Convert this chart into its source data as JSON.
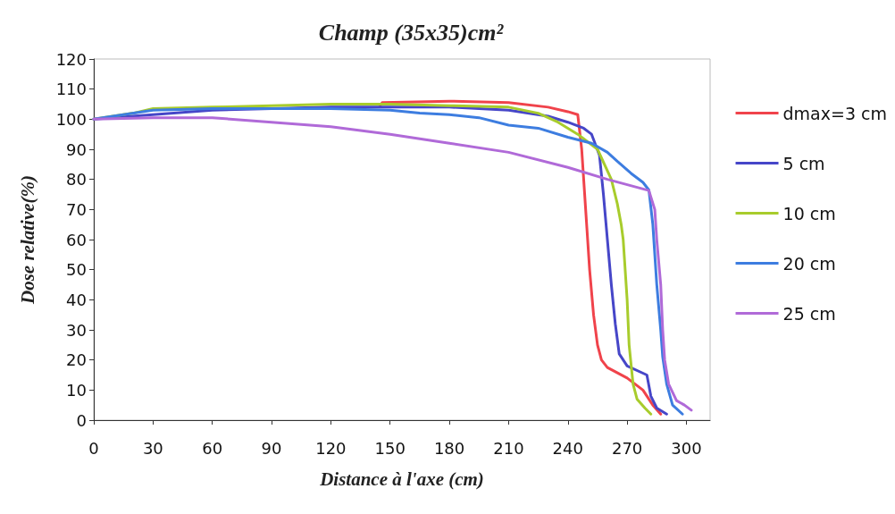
{
  "chart_data": {
    "type": "line",
    "title": "Champ (35x35)cm²",
    "xlabel": "Distance à l'axe (cm)",
    "ylabel": "Dose relative(%)",
    "xlim": [
      0,
      312
    ],
    "xticks": [
      0,
      30,
      60,
      90,
      120,
      150,
      180,
      210,
      240,
      270,
      300
    ],
    "ylim": [
      0,
      120
    ],
    "yticks": [
      0,
      10,
      20,
      30,
      40,
      50,
      60,
      70,
      80,
      90,
      100,
      110,
      120
    ],
    "grid": false,
    "legend": "right",
    "marker": "none",
    "line_style": "solid",
    "series": [
      {
        "name": "dmax=3 cm",
        "color": "#f0434b",
        "x": [
          145,
          146,
          180,
          210,
          230,
          240,
          245,
          247,
          249,
          251,
          253,
          255,
          257,
          260,
          270,
          278,
          283,
          287
        ],
        "values": [
          104.5,
          105.5,
          106,
          105.5,
          104,
          102.5,
          101.5,
          90,
          70,
          50,
          35,
          25,
          20,
          17.5,
          14,
          10,
          5,
          2
        ]
      },
      {
        "name": "5 cm",
        "color": "#4646c8",
        "x": [
          0,
          30,
          60,
          90,
          120,
          150,
          180,
          210,
          230,
          240,
          248,
          252,
          256,
          258,
          260,
          262,
          264,
          266,
          270,
          280,
          282,
          285,
          290
        ],
        "values": [
          100,
          101.5,
          103,
          103.5,
          104,
          104,
          104,
          103,
          101,
          99,
          97,
          95,
          88,
          75,
          60,
          45,
          32,
          22,
          18,
          15,
          8,
          4,
          2
        ]
      },
      {
        "name": "10 cm",
        "color": "#a8cc2c",
        "x": [
          0,
          20,
          30,
          60,
          90,
          120,
          150,
          180,
          210,
          225,
          235,
          245,
          255,
          262,
          265,
          267,
          268,
          270,
          271,
          273,
          275,
          279,
          282
        ],
        "values": [
          100,
          102,
          103.5,
          104,
          104.5,
          105,
          105,
          104.5,
          104,
          102,
          99,
          95,
          90,
          80,
          72,
          65,
          60,
          40,
          25,
          12,
          7,
          4,
          2
        ]
      },
      {
        "name": "20 cm",
        "color": "#3d7de0",
        "x": [
          0,
          30,
          60,
          90,
          120,
          150,
          165,
          180,
          195,
          210,
          225,
          240,
          252,
          260,
          265,
          272,
          278,
          281,
          283,
          285,
          287,
          288,
          290,
          293,
          298
        ],
        "values": [
          100,
          103,
          103.5,
          103.5,
          103.5,
          103,
          102,
          101.5,
          100.5,
          98,
          97,
          94,
          92,
          89,
          86,
          82,
          79,
          76.5,
          65,
          45,
          30,
          21,
          12,
          5,
          2
        ]
      },
      {
        "name": "25 cm",
        "color": "#b06ad8",
        "x": [
          0,
          30,
          60,
          90,
          120,
          150,
          180,
          210,
          240,
          260,
          281,
          284,
          285,
          287,
          288,
          289,
          291,
          295,
          299,
          302.5
        ],
        "values": [
          100,
          100.5,
          100.5,
          99,
          97.5,
          95,
          92,
          89,
          84,
          80,
          76.3,
          70,
          60,
          45,
          30,
          20,
          12,
          6.5,
          5,
          3.3
        ]
      }
    ]
  }
}
